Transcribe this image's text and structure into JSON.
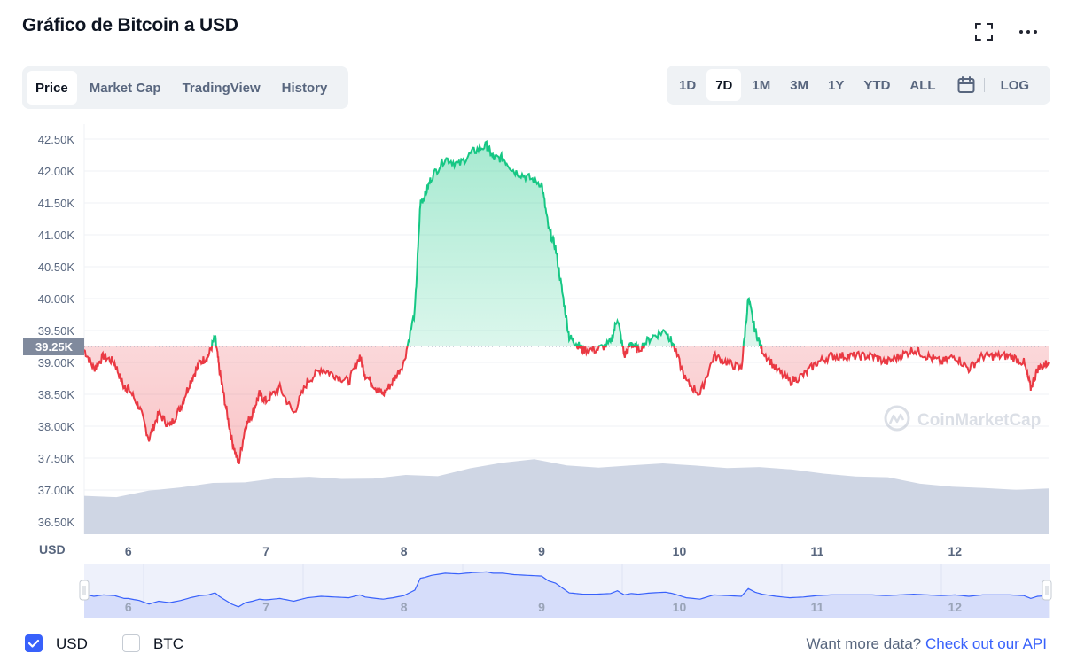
{
  "title": "Gráfico de Bitcoin a USD",
  "tabs": [
    {
      "label": "Price",
      "active": true
    },
    {
      "label": "Market Cap",
      "active": false
    },
    {
      "label": "TradingView",
      "active": false
    },
    {
      "label": "History",
      "active": false
    }
  ],
  "ranges": [
    {
      "label": "1D",
      "active": false
    },
    {
      "label": "7D",
      "active": true
    },
    {
      "label": "1M",
      "active": false
    },
    {
      "label": "3M",
      "active": false
    },
    {
      "label": "1Y",
      "active": false
    },
    {
      "label": "YTD",
      "active": false
    },
    {
      "label": "ALL",
      "active": false
    }
  ],
  "log_label": "LOG",
  "icons": {
    "fullscreen": "fullscreen-icon",
    "more": "more-dots-icon",
    "calendar": "calendar-icon",
    "logo": "coinmarketcap-logo"
  },
  "watermark": "CoinMarketCap",
  "footer": {
    "usd_label": "USD",
    "usd_checked": true,
    "btc_label": "BTC",
    "btc_checked": false,
    "api_prefix": "Want more data? ",
    "api_link": "Check out our API"
  },
  "colors": {
    "up": "#16c784",
    "down": "#ea3943",
    "volume": "#cfd6e4",
    "accent": "#3861fb",
    "baseline_tag": "#808a9d"
  },
  "chart_data": {
    "type": "line",
    "title": "",
    "xlabel": "",
    "ylabel": "USD",
    "y_unit_label": "USD",
    "ylim": [
      36300,
      42750
    ],
    "xlim": [
      5.68,
      12.68
    ],
    "y_ticks": [
      "42.50K",
      "42.00K",
      "41.50K",
      "41.00K",
      "40.50K",
      "40.00K",
      "39.50K",
      "39.00K",
      "38.50K",
      "38.00K",
      "37.50K",
      "37.00K",
      "36.50K"
    ],
    "y_tick_values": [
      42500,
      42000,
      41500,
      41000,
      40500,
      40000,
      39500,
      39000,
      38500,
      38000,
      37500,
      37000,
      36500
    ],
    "x_ticks": [
      "6",
      "7",
      "8",
      "9",
      "10",
      "11",
      "12"
    ],
    "x_tick_values": [
      6,
      7,
      8,
      9,
      10,
      11,
      12
    ],
    "baseline": 39250,
    "baseline_label": "39.25K",
    "grid": true,
    "series": [
      {
        "x": [
          5.68,
          5.75,
          5.82,
          5.9,
          5.97,
          6.0,
          6.08,
          6.15,
          6.22,
          6.3,
          6.38,
          6.45,
          6.52,
          6.58,
          6.63,
          6.66,
          6.7,
          6.75,
          6.8,
          6.85,
          6.9,
          6.95,
          7.0,
          7.1,
          7.2,
          7.3,
          7.4,
          7.5,
          7.6,
          7.68,
          7.72,
          7.8,
          7.85,
          7.92,
          8.0,
          8.08,
          8.12,
          8.15,
          8.2,
          8.3,
          8.4,
          8.5,
          8.6,
          8.65,
          8.72,
          8.8,
          8.9,
          9.0,
          9.05,
          9.1,
          9.15,
          9.2,
          9.25,
          9.3,
          9.4,
          9.5,
          9.55,
          9.6,
          9.65,
          9.7,
          9.8,
          9.9,
          9.95,
          10.05,
          10.15,
          10.25,
          10.35,
          10.45,
          10.5,
          10.55,
          10.6,
          10.7,
          10.8,
          10.9,
          11.0,
          11.1,
          11.2,
          11.3,
          11.4,
          11.5,
          11.6,
          11.7,
          11.8,
          11.9,
          12.0,
          12.1,
          12.2,
          12.3,
          12.4,
          12.5,
          12.55,
          12.6,
          12.68
        ],
        "y": [
          39200,
          38900,
          39100,
          39000,
          38600,
          38600,
          38300,
          37800,
          38200,
          38000,
          38300,
          38700,
          39000,
          39100,
          39400,
          38900,
          38400,
          37800,
          37400,
          38000,
          38200,
          38500,
          38400,
          38600,
          38200,
          38700,
          38900,
          38800,
          38700,
          39100,
          38800,
          38600,
          38500,
          38700,
          39000,
          39800,
          41500,
          41600,
          41900,
          42200,
          42100,
          42300,
          42400,
          42200,
          42200,
          42000,
          41900,
          41800,
          41100,
          40800,
          40100,
          39400,
          39300,
          39200,
          39200,
          39300,
          39700,
          39100,
          39300,
          39200,
          39400,
          39500,
          39300,
          38700,
          38500,
          39100,
          39000,
          38900,
          40000,
          39500,
          39200,
          38900,
          38700,
          38800,
          39000,
          39100,
          39100,
          39100,
          39100,
          39000,
          39100,
          39200,
          39100,
          39000,
          39100,
          38900,
          39100,
          39100,
          39100,
          39000,
          38600,
          38900,
          39000
        ]
      }
    ],
    "volume_relative": [
      0.2,
      0.22,
      0.3,
      0.35,
      0.4,
      0.42,
      0.48,
      0.5,
      0.52,
      0.5,
      0.55,
      0.52,
      0.65,
      0.75,
      0.8,
      0.72,
      0.68,
      0.72,
      0.72,
      0.7,
      0.68,
      0.66,
      0.62,
      0.6,
      0.56,
      0.5,
      0.42,
      0.35,
      0.32,
      0.3,
      0.32
    ],
    "navigator": {
      "x_ticks": [
        "6",
        "7",
        "8",
        "9",
        "10",
        "11",
        "12"
      ]
    }
  }
}
